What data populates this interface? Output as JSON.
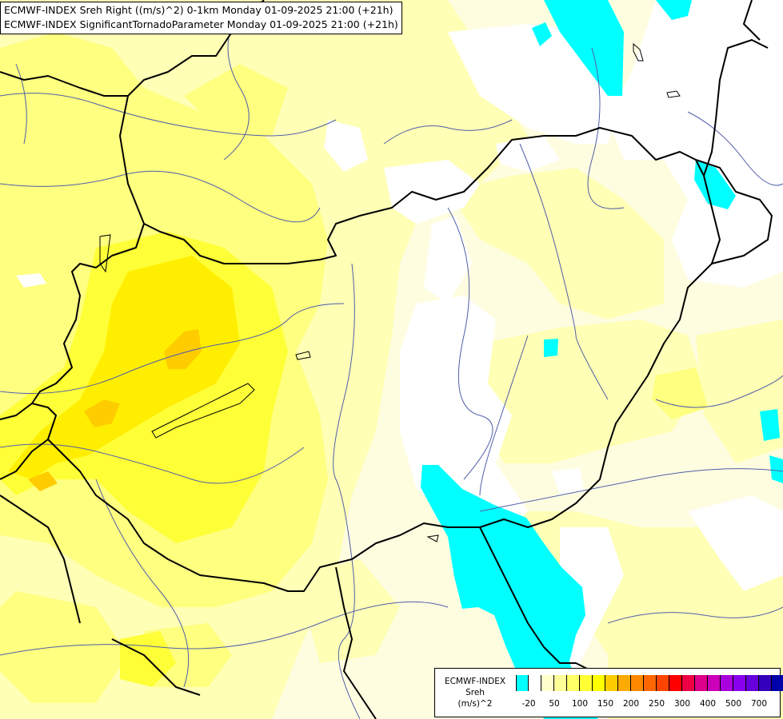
{
  "titles": [
    "ECMWF-INDEX Sreh Right ((m/s)^2) 0-1km Monday 01-09-2025 21:00 (+21h)",
    "ECMWF-INDEX SignificantTornadoParameter Monday 01-09-2025 21:00 (+21h)"
  ],
  "legend": {
    "source": "ECMWF-INDEX",
    "variable": "Sreh",
    "unit": "(m/s)^2",
    "colors": [
      "#00ffff",
      "#ffffff",
      "#ffffcc",
      "#ffff99",
      "#ffff66",
      "#ffff33",
      "#ffff00",
      "#ffcc00",
      "#ffaa00",
      "#ff8800",
      "#ff6600",
      "#ff4400",
      "#ff0000",
      "#ee0044",
      "#dd0088",
      "#cc00bb",
      "#aa00dd",
      "#8800ee",
      "#6600dd",
      "#3300bb",
      "#0000aa"
    ],
    "ticks": [
      {
        "label": "-20",
        "index": 0
      },
      {
        "label": "50",
        "index": 2
      },
      {
        "label": "100",
        "index": 4
      },
      {
        "label": "150",
        "index": 6
      },
      {
        "label": "200",
        "index": 8
      },
      {
        "label": "250",
        "index": 10
      },
      {
        "label": "300",
        "index": 12
      },
      {
        "label": "400",
        "index": 14
      },
      {
        "label": "500",
        "index": 16
      },
      {
        "label": "700",
        "index": 18
      }
    ]
  },
  "field_colors": {
    "background": "#fffde0",
    "light_yellow": "#ffffb5",
    "yellow": "#ffff80",
    "bright_yellow": "#ffff38",
    "strong_yellow": "#ffee00",
    "orange": "#ffcc00",
    "white": "#ffffff",
    "cyan": "#00ffff"
  },
  "line_colors": {
    "borders": "#000000",
    "rivers": "#4f5ea8"
  }
}
